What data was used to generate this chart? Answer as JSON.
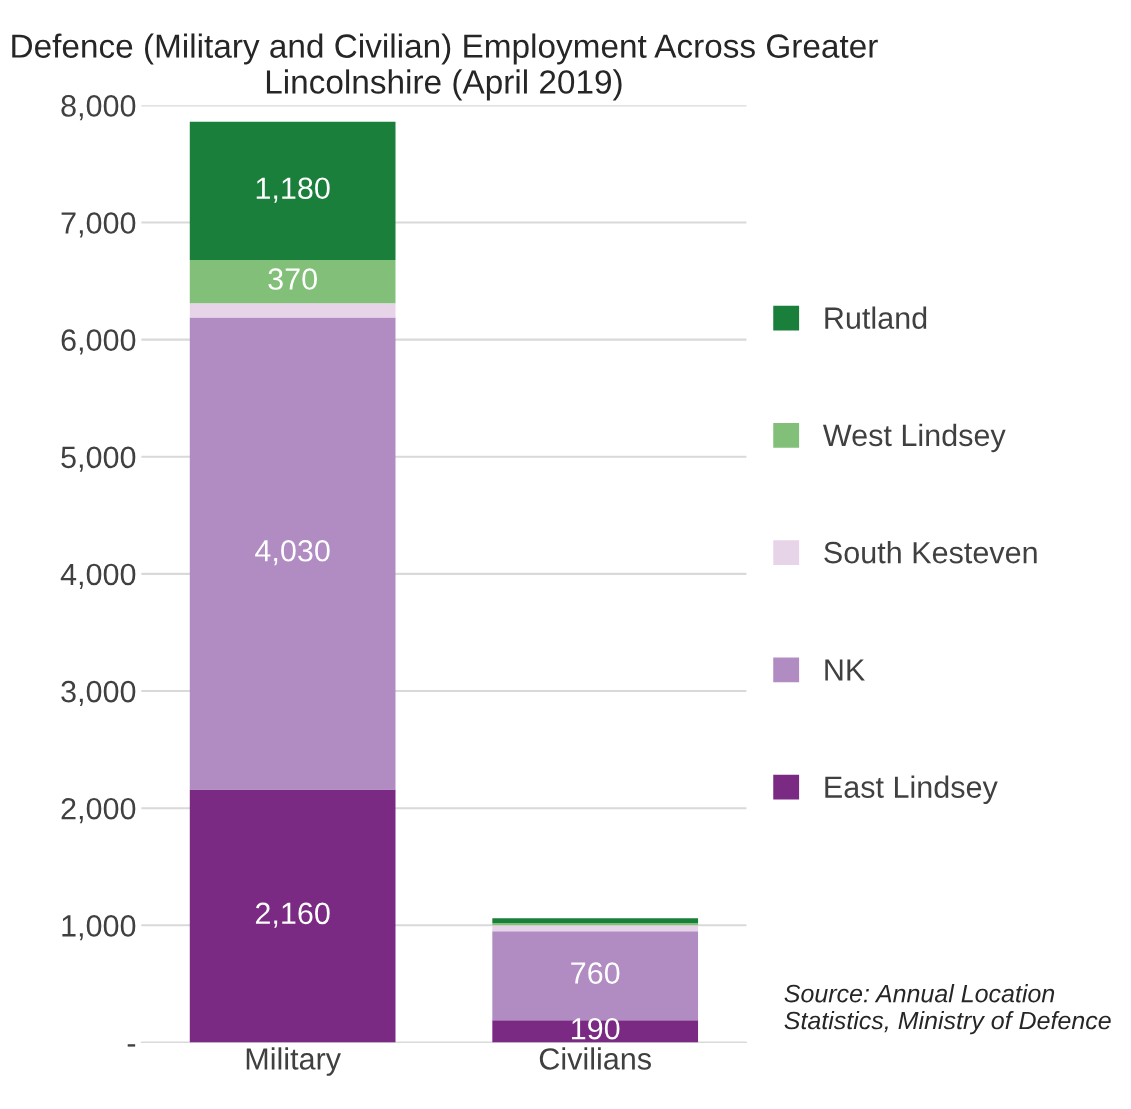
{
  "chart_data": {
    "type": "bar",
    "stacked": true,
    "title": "Defence (Military and Civilian) Employment Across Greater Lincolnshire (April 2019)",
    "categories": [
      "Military",
      "Civilians"
    ],
    "series": [
      {
        "name": "East Lindsey",
        "color": "#7b2a84",
        "values": [
          2160,
          190
        ],
        "value_labels": [
          "2,160",
          "190"
        ]
      },
      {
        "name": "NK",
        "color": "#b08cc3",
        "values": [
          4030,
          760
        ],
        "value_labels": [
          "4,030",
          "760"
        ]
      },
      {
        "name": "South Kesteven",
        "color": "#e8d4e8",
        "values": [
          120,
          50
        ],
        "value_labels": [
          null,
          null
        ]
      },
      {
        "name": "West Lindsey",
        "color": "#82c07a",
        "values": [
          370,
          20
        ],
        "value_labels": [
          "370",
          null
        ]
      },
      {
        "name": "Rutland",
        "color": "#1a7f3b",
        "values": [
          1180,
          40
        ],
        "value_labels": [
          "1,180",
          null
        ]
      }
    ],
    "ylim": [
      0,
      8000
    ],
    "yticks": [
      {
        "value": 0,
        "label": "-"
      },
      {
        "value": 1000,
        "label": "1,000"
      },
      {
        "value": 2000,
        "label": "2,000"
      },
      {
        "value": 3000,
        "label": "3,000"
      },
      {
        "value": 4000,
        "label": "4,000"
      },
      {
        "value": 5000,
        "label": "5,000"
      },
      {
        "value": 6000,
        "label": "6,000"
      },
      {
        "value": 7000,
        "label": "7,000"
      },
      {
        "value": 8000,
        "label": "8,000"
      }
    ],
    "grid": "y",
    "legend": "right",
    "annotations": [
      "Source: Annual Location Statistics, Ministry of Defence"
    ]
  }
}
